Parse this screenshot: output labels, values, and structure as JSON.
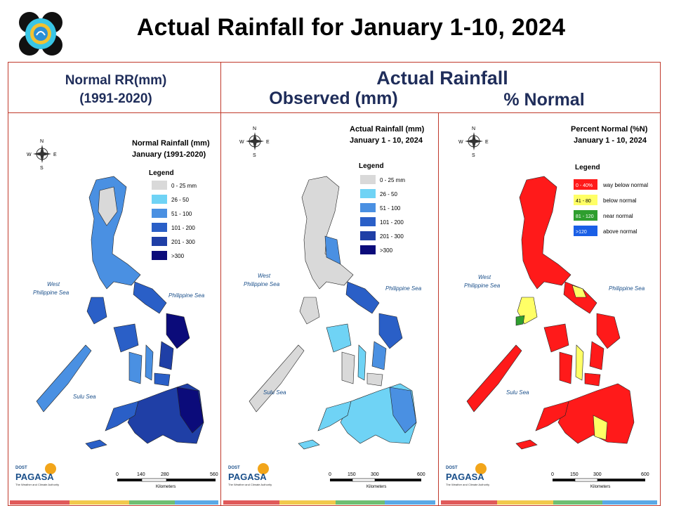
{
  "title": "Actual Rainfall for January 1-10, 2024",
  "headers": {
    "normal_line1": "Normal RR(mm)",
    "normal_line2": "(1991-2020)",
    "actual": "Actual Rainfall",
    "observed": "Observed (mm)",
    "percent": "% Normal"
  },
  "colors": {
    "frame": "#c0392b",
    "header_text": "#1f2d5a",
    "rain_0_25": "#d9d9d9",
    "rain_26_50": "#6fd3f5",
    "rain_51_100": "#4a90e2",
    "rain_101_200": "#2a5fc7",
    "rain_201_300": "#1f3fa6",
    "rain_300_plus": "#0b0b7a",
    "pct_way_below": "#ff1a1a",
    "pct_below": "#ffff66",
    "pct_near": "#2e9e2e",
    "pct_above": "#1a5fe6"
  },
  "panels": [
    {
      "id": "normal",
      "map_title_1": "Normal Rainfall (mm)",
      "map_title_2": "January (1991-2020)",
      "legend_title": "Legend",
      "legend": [
        {
          "label": "0 - 25 mm",
          "color": "#d9d9d9"
        },
        {
          "label": "26 - 50",
          "color": "#6fd3f5"
        },
        {
          "label": "51 - 100",
          "color": "#4a90e2"
        },
        {
          "label": "101 - 200",
          "color": "#2a5fc7"
        },
        {
          "label": "201 - 300",
          "color": "#1f3fa6"
        },
        {
          "label": ">300",
          "color": "#0b0b7a"
        }
      ],
      "sea_west_1": "West",
      "sea_west_2": "Philippine Sea",
      "sea_east": "Philippine Sea",
      "sea_south": "Sulu Sea",
      "scale_ticks": [
        "0",
        "140",
        "280",
        "560"
      ],
      "scale_unit": "Kilometers",
      "region_colors": [
        "#4a90e2",
        "#2a5fc7",
        "#1f3fa6",
        "#0b0b7a"
      ]
    },
    {
      "id": "observed",
      "map_title_1": "Actual Rainfall (mm)",
      "map_title_2": "January 1 - 10, 2024",
      "legend_title": "Legend",
      "legend": [
        {
          "label": "0 - 25 mm",
          "color": "#d9d9d9"
        },
        {
          "label": "26 - 50",
          "color": "#6fd3f5"
        },
        {
          "label": "51 - 100",
          "color": "#4a90e2"
        },
        {
          "label": "101 - 200",
          "color": "#2a5fc7"
        },
        {
          "label": "201 - 300",
          "color": "#1f3fa6"
        },
        {
          "label": ">300",
          "color": "#0b0b7a"
        }
      ],
      "sea_west_1": "West",
      "sea_west_2": "Philippine Sea",
      "sea_east": "Philippine Sea",
      "sea_south": "Sulu Sea",
      "scale_ticks": [
        "0",
        "150",
        "300",
        "600"
      ],
      "scale_unit": "Kilometers",
      "region_colors": [
        "#d9d9d9",
        "#6fd3f5",
        "#4a90e2",
        "#2a5fc7"
      ]
    },
    {
      "id": "percent",
      "map_title_1": "Percent Normal (%N)",
      "map_title_2": "January 1 - 10, 2024",
      "legend_title": "Legend",
      "legend": [
        {
          "swatch": "0 - 40%",
          "label": "way below normal",
          "color": "#ff1a1a"
        },
        {
          "swatch": "41 - 80",
          "label": "below normal",
          "color": "#ffff66"
        },
        {
          "swatch": "81 - 120",
          "label": "near normal",
          "color": "#2e9e2e"
        },
        {
          "swatch": ">120",
          "label": "above normal",
          "color": "#1a5fe6"
        }
      ],
      "sea_west_1": "West",
      "sea_west_2": "Philippine Sea",
      "sea_east": "Philippine Sea",
      "sea_south": "Sulu Sea",
      "scale_ticks": [
        "0",
        "150",
        "300",
        "600"
      ],
      "scale_unit": "Kilometers",
      "region_colors": [
        "#ff1a1a",
        "#ff1a1a",
        "#ffff66",
        "#2e9e2e"
      ]
    }
  ],
  "compass": {
    "n": "N",
    "s": "S",
    "e": "E",
    "w": "W"
  },
  "footer_logo": {
    "dost": "DOST",
    "pagasa": "PAGASA",
    "tagline": "The Weather and Climate Authority"
  },
  "footer_stripe_colors": [
    "#e05a5a",
    "#f2c94c",
    "#6fbf73",
    "#5aa9e6"
  ]
}
